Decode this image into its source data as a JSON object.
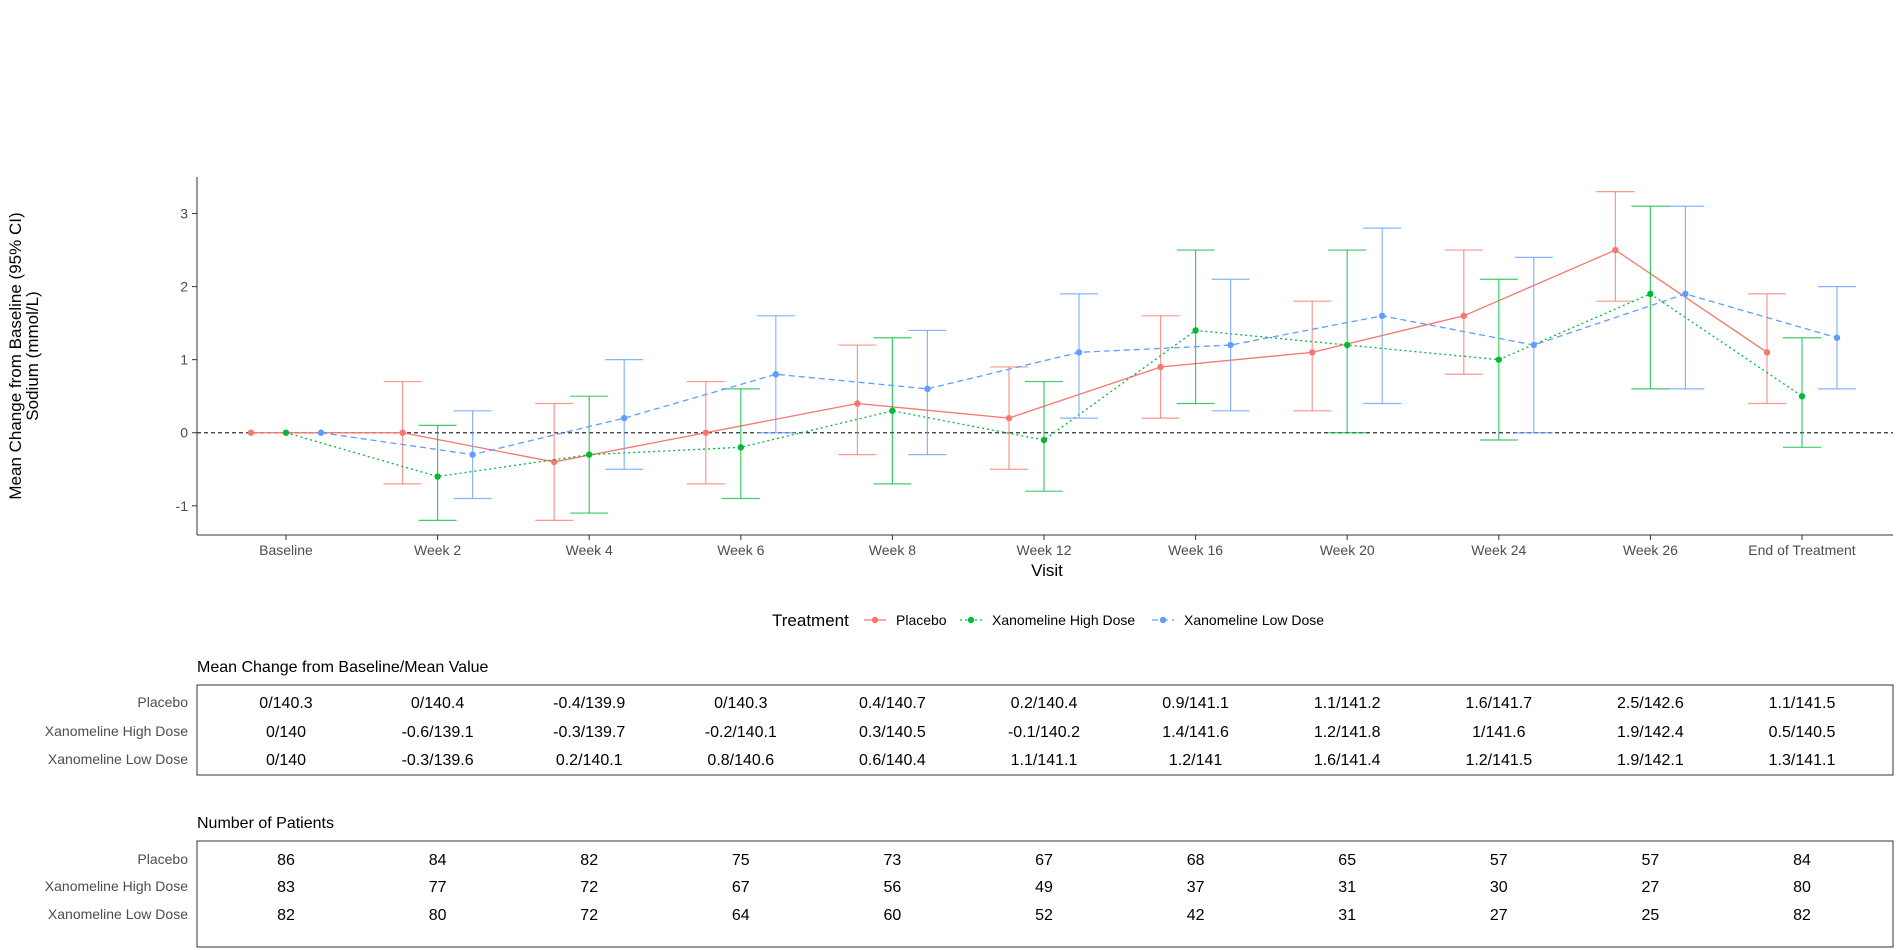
{
  "chart_data": {
    "type": "line",
    "ylabel_line1": "Mean Change from Baseline (95% CI)",
    "ylabel_line2": "Sodium (mmol/L)",
    "xlabel": "Visit",
    "ylim": [
      -1.4,
      3.5
    ],
    "yticks": [
      -1,
      0,
      1,
      2,
      3
    ],
    "reference_line": 0,
    "categories": [
      "Baseline",
      "Week 2",
      "Week 4",
      "Week 6",
      "Week 8",
      "Week 12",
      "Week 16",
      "Week 20",
      "Week 24",
      "Week 26",
      "End of Treatment"
    ],
    "legend_title": "Treatment",
    "legend_position": "bottom",
    "grid": false,
    "series": [
      {
        "name": "Placebo",
        "color": "#F8766D",
        "dash": "solid",
        "mean": [
          0,
          0,
          -0.4,
          0,
          0.4,
          0.2,
          0.9,
          1.1,
          1.6,
          2.5,
          1.1
        ],
        "lower": [
          0,
          -0.7,
          -1.2,
          -0.7,
          -0.3,
          -0.5,
          0.2,
          0.3,
          0.8,
          1.8,
          0.4
        ],
        "upper": [
          0,
          0.7,
          0.4,
          0.7,
          1.2,
          0.9,
          1.6,
          1.8,
          2.5,
          3.3,
          1.9
        ]
      },
      {
        "name": "Xanomeline High Dose",
        "color": "#00BA38",
        "dash": "dotted",
        "mean": [
          0,
          -0.6,
          -0.3,
          -0.2,
          0.3,
          -0.1,
          1.4,
          1.2,
          1.0,
          1.9,
          0.5
        ],
        "lower": [
          0,
          -1.2,
          -1.1,
          -0.9,
          -0.7,
          -0.8,
          0.4,
          0.0,
          -0.1,
          0.6,
          -0.2
        ],
        "upper": [
          0,
          0.1,
          0.5,
          0.6,
          1.3,
          0.7,
          2.5,
          2.5,
          2.1,
          3.1,
          1.3
        ]
      },
      {
        "name": "Xanomeline Low Dose",
        "color": "#619CFF",
        "dash": "dashed",
        "mean": [
          0,
          -0.3,
          0.2,
          0.8,
          0.6,
          1.1,
          1.2,
          1.6,
          1.2,
          1.9,
          1.3
        ],
        "lower": [
          0,
          -0.9,
          -0.5,
          0.0,
          -0.3,
          0.2,
          0.3,
          0.4,
          0.0,
          0.6,
          0.6
        ],
        "upper": [
          0,
          0.3,
          1.0,
          1.6,
          1.4,
          1.9,
          2.1,
          2.8,
          2.4,
          3.1,
          2.0
        ]
      }
    ]
  },
  "tables": [
    {
      "title": "Mean Change from Baseline/Mean Value",
      "rows": [
        {
          "label": "Placebo",
          "values": [
            "0/140.3",
            "0/140.4",
            "-0.4/139.9",
            "0/140.3",
            "0.4/140.7",
            "0.2/140.4",
            "0.9/141.1",
            "1.1/141.2",
            "1.6/141.7",
            "2.5/142.6",
            "1.1/141.5"
          ]
        },
        {
          "label": "Xanomeline High Dose",
          "values": [
            "0/140",
            "-0.6/139.1",
            "-0.3/139.7",
            "-0.2/140.1",
            "0.3/140.5",
            "-0.1/140.2",
            "1.4/141.6",
            "1.2/141.8",
            "1/141.6",
            "1.9/142.4",
            "0.5/140.5"
          ]
        },
        {
          "label": "Xanomeline Low Dose",
          "values": [
            "0/140",
            "-0.3/139.6",
            "0.2/140.1",
            "0.8/140.6",
            "0.6/140.4",
            "1.1/141.1",
            "1.2/141",
            "1.6/141.4",
            "1.2/141.5",
            "1.9/142.1",
            "1.3/141.1"
          ]
        }
      ]
    },
    {
      "title": "Number of Patients",
      "rows": [
        {
          "label": "Placebo",
          "values": [
            "86",
            "84",
            "82",
            "75",
            "73",
            "67",
            "68",
            "65",
            "57",
            "57",
            "84"
          ]
        },
        {
          "label": "Xanomeline High Dose",
          "values": [
            "83",
            "77",
            "72",
            "67",
            "56",
            "49",
            "37",
            "31",
            "30",
            "27",
            "80"
          ]
        },
        {
          "label": "Xanomeline Low Dose",
          "values": [
            "82",
            "80",
            "72",
            "64",
            "60",
            "52",
            "42",
            "31",
            "27",
            "25",
            "82"
          ]
        }
      ]
    }
  ]
}
